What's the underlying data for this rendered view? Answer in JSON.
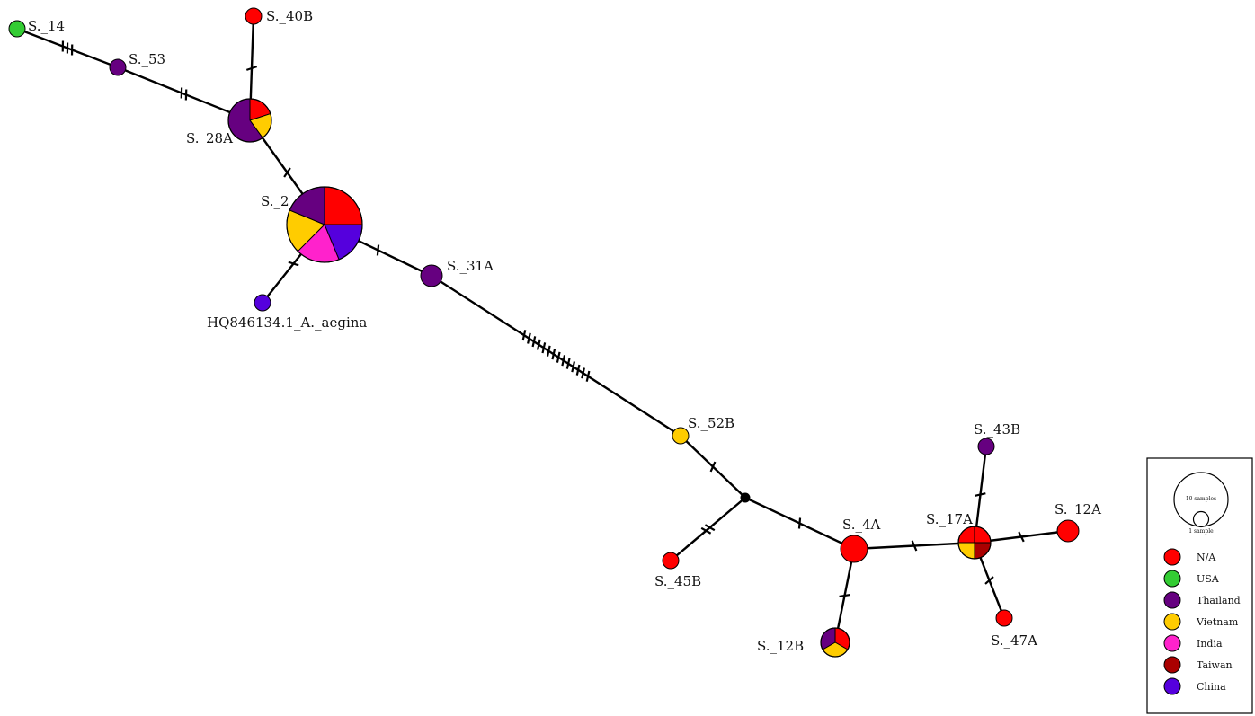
{
  "colors": {
    "N/A": "#ff0000",
    "USA": "#33cc33",
    "Thailand": "#660080",
    "Vietnam": "#ffcc00",
    "India": "#ff22cc",
    "Taiwan": "#aa0000",
    "China": "#5500dd",
    "median": "#000000"
  },
  "legend": {
    "size_large": "10 samples",
    "size_small": "1 sample",
    "entries": [
      {
        "name": "N/A",
        "color": "#ff0000"
      },
      {
        "name": "USA",
        "color": "#33cc33"
      },
      {
        "name": "Thailand",
        "color": "#660080"
      },
      {
        "name": "Vietnam",
        "color": "#ffcc00"
      },
      {
        "name": "India",
        "color": "#ff22cc"
      },
      {
        "name": "Taiwan",
        "color": "#aa0000"
      },
      {
        "name": "China",
        "color": "#5500dd"
      }
    ]
  },
  "haplotypes": [
    {
      "id": "S._14",
      "label": "S._14",
      "composition": {
        "USA": 1
      }
    },
    {
      "id": "S._53",
      "label": "S._53",
      "composition": {
        "Thailand": 1
      }
    },
    {
      "id": "S._40B",
      "label": "S._40B",
      "composition": {
        "N/A": 1
      }
    },
    {
      "id": "S._28A",
      "label": "S._28A",
      "composition": {
        "N/A": 1,
        "Vietnam": 1,
        "Thailand": 3
      }
    },
    {
      "id": "S._2",
      "label": "S._2",
      "composition": {
        "N/A": 2,
        "China": 1.5,
        "India": 1.5,
        "Vietnam": 1.5,
        "Thailand": 1.5
      }
    },
    {
      "id": "HQ846134",
      "label": "HQ846134.1_A._aegina",
      "composition": {
        "China": 1
      }
    },
    {
      "id": "S._31A",
      "label": "S._31A",
      "composition": {
        "Thailand": 1
      }
    },
    {
      "id": "S._52B",
      "label": "S._52B",
      "composition": {
        "Vietnam": 1
      }
    },
    {
      "id": "S._45B",
      "label": "S._45B",
      "composition": {
        "N/A": 1
      }
    },
    {
      "id": "S._4A",
      "label": "S._4A",
      "composition": {
        "N/A": 2
      }
    },
    {
      "id": "S._12B",
      "label": "S._12B",
      "composition": {
        "N/A": 1,
        "Vietnam": 1,
        "Thailand": 1
      }
    },
    {
      "id": "S._17A",
      "label": "S._17A",
      "composition": {
        "N/A": 2,
        "Taiwan": 1,
        "Vietnam": 1
      }
    },
    {
      "id": "S._43B",
      "label": "S._43B",
      "composition": {
        "Thailand": 1
      }
    },
    {
      "id": "S._12A",
      "label": "S._12A",
      "composition": {
        "N/A": 1
      }
    },
    {
      "id": "S._47A",
      "label": "S._47A",
      "composition": {
        "N/A": 1
      }
    },
    {
      "id": "median1",
      "label": "",
      "composition": {
        "median": 1
      }
    }
  ],
  "edges": [
    {
      "from": "S._14",
      "to": "S._53",
      "mutations": 3
    },
    {
      "from": "S._53",
      "to": "S._28A",
      "mutations": 2
    },
    {
      "from": "S._40B",
      "to": "S._28A",
      "mutations": 1
    },
    {
      "from": "S._28A",
      "to": "S._2",
      "mutations": 1
    },
    {
      "from": "S._2",
      "to": "HQ846134",
      "mutations": 1
    },
    {
      "from": "S._2",
      "to": "S._31A",
      "mutations": 1
    },
    {
      "from": "S._31A",
      "to": "S._52B",
      "mutations": 14
    },
    {
      "from": "S._52B",
      "to": "median1",
      "mutations": 1
    },
    {
      "from": "median1",
      "to": "S._45B",
      "mutations": 2
    },
    {
      "from": "median1",
      "to": "S._4A",
      "mutations": 1
    },
    {
      "from": "S._4A",
      "to": "S._12B",
      "mutations": 1
    },
    {
      "from": "S._4A",
      "to": "S._17A",
      "mutations": 1
    },
    {
      "from": "S._17A",
      "to": "S._43B",
      "mutations": 1
    },
    {
      "from": "S._17A",
      "to": "S._12A",
      "mutations": 1
    },
    {
      "from": "S._17A",
      "to": "S._47A",
      "mutations": 1
    }
  ]
}
